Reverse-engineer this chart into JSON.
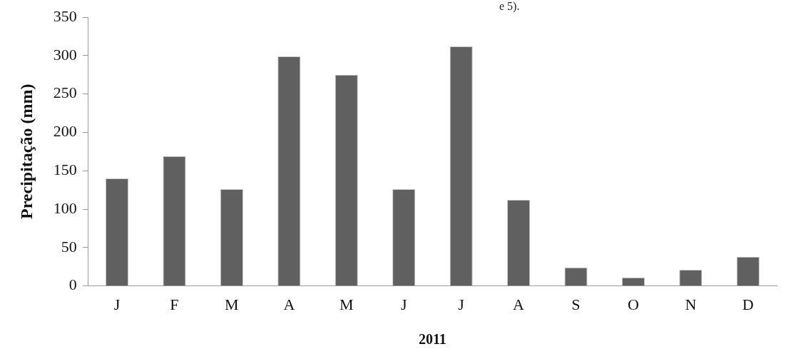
{
  "chart_data": {
    "type": "bar",
    "xlabel": "2011",
    "ylabel": "Precipitação (mm)",
    "annotations": [
      "e 5)."
    ],
    "categories": [
      "J",
      "F",
      "M",
      "A",
      "M",
      "J",
      "J",
      "A",
      "S",
      "O",
      "N",
      "D"
    ],
    "values": [
      140,
      169,
      126,
      299,
      275,
      126,
      312,
      112,
      24,
      11,
      21,
      38
    ],
    "color": "#606060",
    "ylim": [
      0,
      350
    ],
    "yticks": [
      0,
      50,
      100,
      150,
      200,
      250,
      300,
      350
    ],
    "grid": false,
    "legend": false
  }
}
